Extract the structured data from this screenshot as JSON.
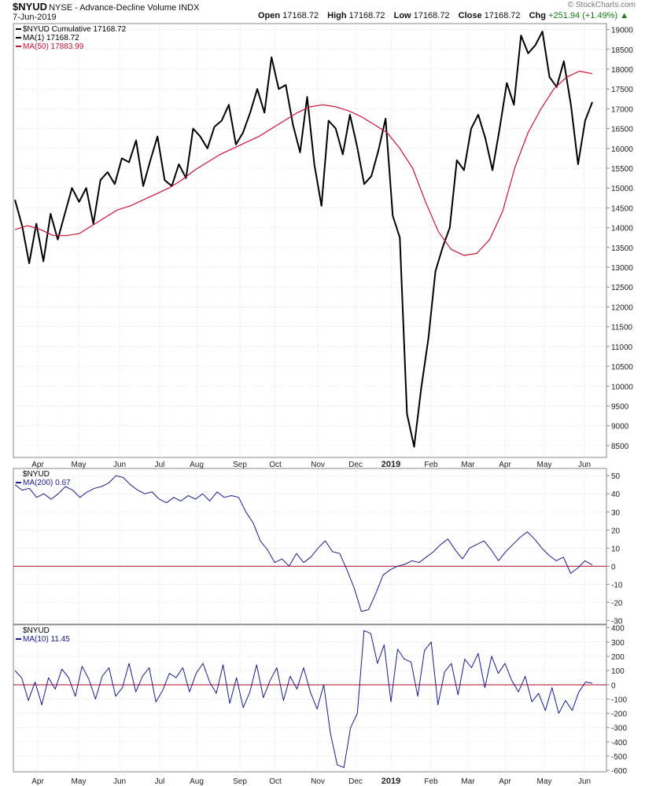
{
  "header": {
    "symbol": "$NYUD",
    "description": "NYSE - Advance-Decline Volume INDX",
    "date": "7-Jun-2019",
    "open_label": "Open",
    "open": "17168.72",
    "high_label": "High",
    "high": "17168.72",
    "low_label": "Low",
    "low": "17168.72",
    "close_label": "Close",
    "close": "17168.72",
    "chg_label": "Chg",
    "chg": "+251.94 (+1.49%)",
    "brand": "© StockCharts.com"
  },
  "colors": {
    "price": "#000000",
    "ma50": "#cc1133",
    "osc": "#1a1a8c",
    "zero": "#b01030",
    "grid": "#c8c8c8",
    "frame": "#888888"
  },
  "x_ticks": [
    "Apr",
    "May",
    "Jun",
    "Jul",
    "Aug",
    "Sep",
    "Oct",
    "Nov",
    "Dec",
    "2019",
    "Feb",
    "Mar",
    "Apr",
    "May",
    "Jun"
  ],
  "chart_data": [
    {
      "type": "line",
      "legend": [
        "$NYUD Cumulative 17168.72",
        "MA(1) 17168.72",
        "MA(50) 17883.99"
      ],
      "ylim": [
        8200,
        19150
      ],
      "y_ticks": [
        8500,
        9000,
        9500,
        10000,
        10500,
        11000,
        11500,
        12000,
        12500,
        13000,
        13500,
        14000,
        14500,
        15000,
        15500,
        16000,
        16500,
        17000,
        17500,
        18000,
        18500,
        19000
      ],
      "series": [
        {
          "name": "$NYUD Cumulative",
          "values": [
            14700,
            14050,
            13100,
            14100,
            13150,
            14350,
            13700,
            14350,
            15000,
            14650,
            15000,
            14100,
            15200,
            15400,
            15100,
            15750,
            15650,
            16200,
            15050,
            15700,
            16300,
            15200,
            15050,
            15600,
            15250,
            16500,
            16300,
            16000,
            16550,
            16700,
            17100,
            16100,
            16400,
            16900,
            17500,
            16900,
            18300,
            17500,
            17600,
            16600,
            15900,
            17300,
            15600,
            14550,
            16700,
            16500,
            15850,
            16850,
            16050,
            15100,
            15300,
            15950,
            16750,
            14300,
            13750,
            9300,
            8470,
            9950,
            11200,
            12900,
            13500,
            14000,
            15700,
            15450,
            16500,
            16850,
            16250,
            15450,
            16500,
            17650,
            17100,
            18850,
            18400,
            18600,
            18950,
            17800,
            17550,
            18200,
            17100,
            15600,
            16700,
            17168.72
          ]
        },
        {
          "name": "MA(50)",
          "values": [
            13950,
            14050,
            13950,
            13800,
            13800,
            13850,
            14050,
            14250,
            14450,
            14550,
            14700,
            14850,
            15000,
            15200,
            15450,
            15650,
            15850,
            16000,
            16150,
            16300,
            16500,
            16700,
            16900,
            17050,
            17100,
            17050,
            16950,
            16800,
            16600,
            16400,
            16000,
            15500,
            14650,
            13900,
            13450,
            13300,
            13350,
            13700,
            14400,
            15550,
            16400,
            17000,
            17500,
            17800,
            17950,
            17883.99
          ]
        }
      ]
    },
    {
      "type": "line",
      "legend": [
        "$NYUD",
        "MA(200) 0.67"
      ],
      "ylim": [
        -32,
        54
      ],
      "y_ticks": [
        50,
        40,
        30,
        20,
        10,
        0,
        -10,
        -20,
        -30
      ],
      "series": [
        {
          "name": "MA(200)",
          "values": [
            45,
            42,
            43,
            38,
            40,
            37,
            40,
            44,
            42,
            38,
            41,
            43,
            44,
            46,
            50,
            49,
            45,
            42,
            40,
            41,
            37,
            35,
            38,
            36,
            39,
            37,
            40,
            36,
            41,
            38,
            39,
            38,
            30,
            24,
            14,
            9,
            2,
            4,
            0,
            7,
            2,
            5,
            10,
            14,
            8,
            7,
            -2,
            -12,
            -25,
            -24,
            -15,
            -5,
            -2,
            0,
            1,
            3,
            2,
            5,
            8,
            12,
            15,
            9,
            4,
            10,
            12,
            14,
            9,
            3,
            8,
            12,
            16,
            19,
            15,
            10,
            6,
            3,
            5,
            -4,
            -1,
            3,
            0.67
          ]
        }
      ]
    },
    {
      "type": "line",
      "legend": [
        "$NYUD",
        "MA(10) 11.45"
      ],
      "ylim": [
        -610,
        420
      ],
      "y_ticks": [
        400,
        300,
        200,
        100,
        0,
        -100,
        -200,
        -300,
        -400,
        -500,
        -600
      ],
      "series": [
        {
          "name": "MA(10)",
          "values": [
            100,
            50,
            -110,
            20,
            -140,
            50,
            -30,
            110,
            50,
            -80,
            130,
            40,
            -100,
            60,
            120,
            -80,
            -20,
            150,
            -50,
            60,
            120,
            -120,
            -40,
            80,
            50,
            120,
            -50,
            80,
            150,
            20,
            -60,
            140,
            -130,
            50,
            -160,
            -50,
            140,
            -90,
            30,
            120,
            -110,
            60,
            -30,
            120,
            -50,
            -170,
            0,
            -340,
            -560,
            -580,
            -300,
            -200,
            380,
            360,
            150,
            280,
            -120,
            250,
            180,
            160,
            -80,
            240,
            300,
            -140,
            90,
            150,
            -70,
            180,
            120,
            220,
            -20,
            200,
            80,
            150,
            30,
            -50,
            60,
            -120,
            -60,
            -180,
            -20,
            -200,
            -110,
            -180,
            -50,
            20,
            11.45
          ]
        }
      ]
    }
  ]
}
